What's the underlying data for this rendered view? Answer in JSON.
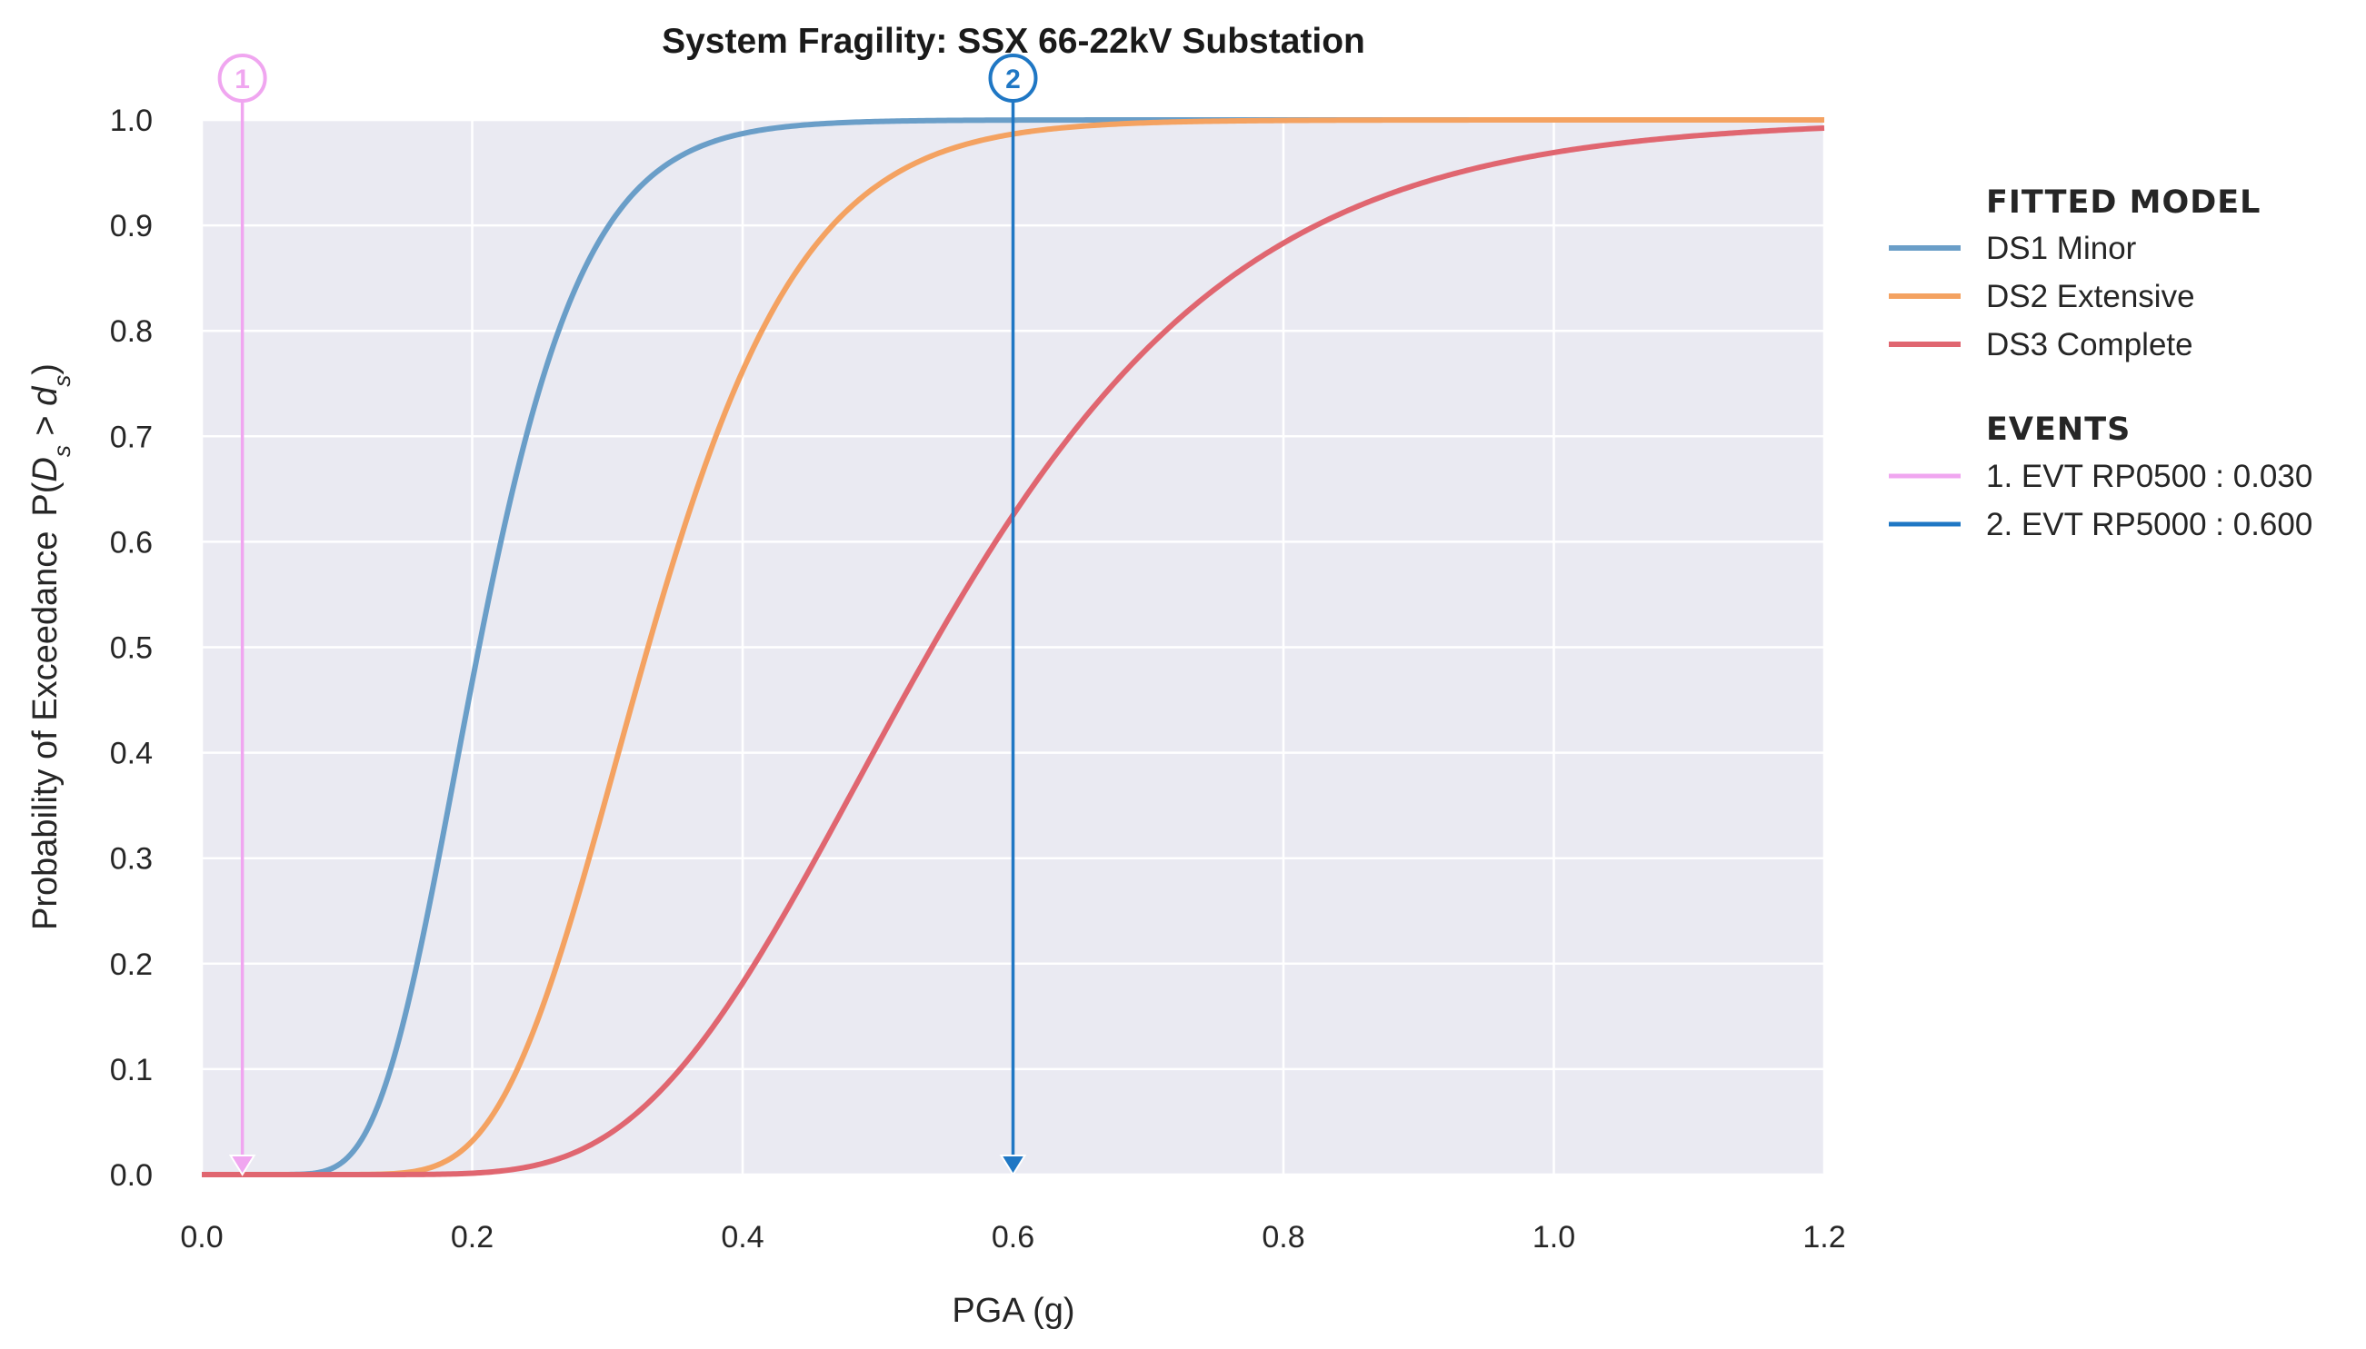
{
  "chart_data": {
    "type": "line",
    "title": "System Fragility: SSX 66-22kV Substation",
    "xlabel": "PGA (g)",
    "ylabel_prefix": "Probability of Exceedance",
    "ylabel_math": "P(D_s > d_s)",
    "xlim": [
      0.0,
      1.2
    ],
    "ylim": [
      0.0,
      1.0
    ],
    "x_ticks": [
      "0.0",
      "0.2",
      "0.4",
      "0.6",
      "0.8",
      "1.0",
      "1.2"
    ],
    "y_ticks": [
      "0.0",
      "0.1",
      "0.2",
      "0.3",
      "0.4",
      "0.5",
      "0.6",
      "0.7",
      "0.8",
      "0.9",
      "1.0"
    ],
    "grid": true,
    "background": "#eaeaf2",
    "legend_placement": "right",
    "legend": {
      "model_title": "FITTED MODEL",
      "events_title": "EVENTS"
    },
    "series": [
      {
        "name": "DS1 Minor",
        "color": "#6a9ec8",
        "median": 0.205,
        "beta": 0.3
      },
      {
        "name": "DS2 Extensive",
        "color": "#f4a261",
        "median": 0.33,
        "beta": 0.27
      },
      {
        "name": "DS3 Complete",
        "color": "#e06670",
        "median": 0.54,
        "beta": 0.33
      }
    ],
    "events": [
      {
        "number": "1",
        "label": "1. EVT RP0500 : 0.030",
        "x": 0.03,
        "color": "#f0a6f0"
      },
      {
        "number": "2",
        "label": "2. EVT RP5000 : 0.600",
        "x": 0.6,
        "color": "#1f77c4"
      }
    ]
  }
}
